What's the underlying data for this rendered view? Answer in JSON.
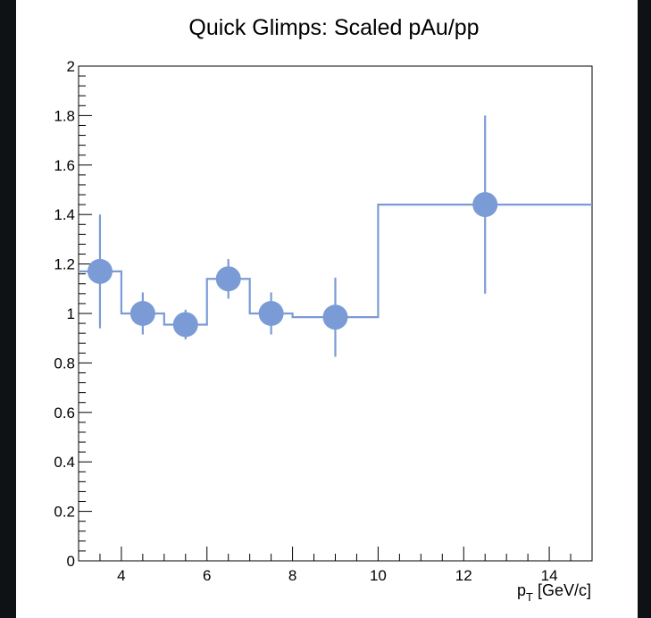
{
  "colors": {
    "background": "#0f1214",
    "panel": "#ffffff",
    "series": "#7b9bd6",
    "axis": "#000000"
  },
  "chart_data": {
    "type": "scatter",
    "title": "Quick Glimps: Scaled pAu/pp",
    "xlabel": "p_T [GeV/c]",
    "xlabel_parts": {
      "main": "p",
      "sub": "T",
      "rest": " [GeV/c]"
    },
    "ylabel": "",
    "xlim": [
      3,
      15
    ],
    "ylim": [
      0,
      2
    ],
    "xticks": [
      4,
      6,
      8,
      10,
      12,
      14
    ],
    "xtick_labels": [
      "4",
      "6",
      "8",
      "10",
      "12",
      "14"
    ],
    "yticks": [
      0,
      0.2,
      0.4,
      0.6,
      0.8,
      1,
      1.2,
      1.4,
      1.6,
      1.8,
      2
    ],
    "ytick_labels": [
      "0",
      "0.2",
      "0.4",
      "0.6",
      "0.8",
      "1",
      "1.2",
      "1.4",
      "1.6",
      "1.8",
      "2"
    ],
    "grid": false,
    "series": [
      {
        "style": "points-with-error-bars",
        "x": [
          3.5,
          4.5,
          5.5,
          6.5,
          7.5,
          9.0,
          12.5
        ],
        "y": [
          1.17,
          1.0,
          0.955,
          1.14,
          1.0,
          0.985,
          1.44
        ],
        "yerr": [
          0.23,
          0.085,
          0.06,
          0.08,
          0.085,
          0.16,
          0.36
        ]
      },
      {
        "style": "histogram-step",
        "bin_edges": [
          3,
          4,
          5,
          6,
          7,
          8,
          10,
          15
        ],
        "values": [
          1.17,
          1.0,
          0.955,
          1.14,
          1.0,
          0.985,
          1.44
        ]
      }
    ]
  }
}
